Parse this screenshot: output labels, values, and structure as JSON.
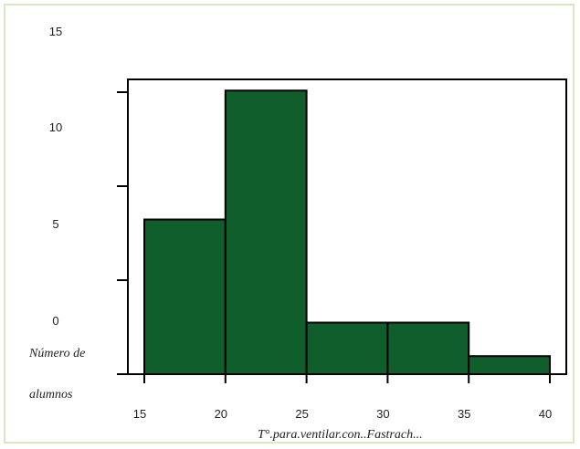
{
  "colors": {
    "bar_fill": "#0f5e2c",
    "bar_stroke": "#000000",
    "frame_border": "#d9e8c4"
  },
  "chart_data": {
    "type": "bar",
    "title": "",
    "xlabel": "T°.para.ventilar.con..Fastrach...",
    "ylabel_line1": "Número de",
    "ylabel_line2": "alumnos",
    "bins": [
      {
        "start": 15,
        "end": 20,
        "value": 6
      },
      {
        "start": 20,
        "end": 25,
        "value": 11
      },
      {
        "start": 25,
        "end": 30,
        "value": 2
      },
      {
        "start": 30,
        "end": 35,
        "value": 2
      },
      {
        "start": 35,
        "end": 40,
        "value": 0.7
      }
    ],
    "xlim": [
      15,
      40
    ],
    "ylim": [
      0,
      11
    ],
    "x_ticks": [
      "15",
      "20",
      "25",
      "30",
      "35",
      "40"
    ],
    "y_tick_labels": [
      "15",
      "10",
      "5",
      "0"
    ],
    "grid": false,
    "legend": "none"
  }
}
